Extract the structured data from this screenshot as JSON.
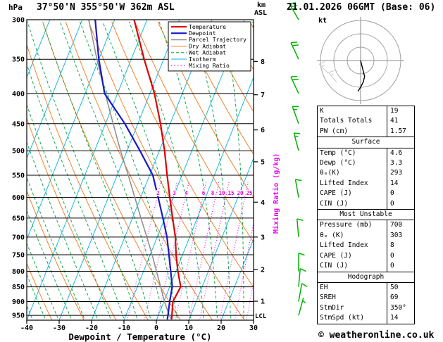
{
  "header": {
    "pressure_unit": "hPa",
    "station_title": "37°50'N 355°50'W 362m ASL",
    "altitude_unit_km": "km",
    "altitude_unit_asl": "ASL",
    "datetime_title": "21.01.2026 06GMT (Base: 06)"
  },
  "footer": {
    "x_axis_label": "Dewpoint / Temperature (°C)",
    "copyright": "© weatheronline.co.uk"
  },
  "side_label": {
    "mixing_ratio_axis": "Mixing Ratio (g/kg)",
    "lcl_label": "LCL"
  },
  "legend": {
    "items": [
      {
        "label": "Temperature",
        "color": "#e00000",
        "dash": ""
      },
      {
        "label": "Dewpoint",
        "color": "#1818cc",
        "dash": ""
      },
      {
        "label": "Parcel Trajectory",
        "color": "#909090",
        "dash": ""
      },
      {
        "label": "Dry Adiabat",
        "color": "#f07818",
        "dash": ""
      },
      {
        "label": "Wet Adiabat",
        "color": "#00a040",
        "dash": "4 3"
      },
      {
        "label": "Isotherm",
        "color": "#00b4dc",
        "dash": ""
      },
      {
        "label": "Mixing Ratio",
        "color": "#e800e8",
        "dash": "1.5 3"
      }
    ]
  },
  "chart_data": {
    "type": "skewt_log_p",
    "pressure_ticks_hpa": [
      300,
      350,
      400,
      450,
      500,
      550,
      600,
      650,
      700,
      750,
      800,
      850,
      900,
      950
    ],
    "temp_ticks_c": [
      -40,
      -30,
      -20,
      -10,
      0,
      10,
      20,
      30
    ],
    "pressure_range_hpa": [
      300,
      968
    ],
    "temp_range_surface_c": [
      -40,
      30
    ],
    "km_ticks": [
      {
        "km": 1,
        "p": 899
      },
      {
        "km": 2,
        "p": 795
      },
      {
        "km": 3,
        "p": 700
      },
      {
        "km": 4,
        "p": 611
      },
      {
        "km": 5,
        "p": 522
      },
      {
        "km": 6,
        "p": 461
      },
      {
        "km": 7,
        "p": 402
      },
      {
        "km": 8,
        "p": 353
      }
    ],
    "lcl_pressure_hpa": 952,
    "isotherms_c": {
      "min": -120,
      "max": 40,
      "step": 10
    },
    "dry_adiabats_c": {
      "min": -40,
      "max": 160,
      "step": 10
    },
    "wet_adiabats_c": {
      "min": -60,
      "max": 36,
      "step": 4
    },
    "mixing_ratio_gkg": [
      2,
      3,
      4,
      6,
      8,
      10,
      15,
      20,
      25
    ],
    "mixing_ratio_label_pressure_hpa": 590,
    "temperature_profile": [
      {
        "p": 965,
        "t": 4.6
      },
      {
        "p": 950,
        "t": 4.2
      },
      {
        "p": 900,
        "t": 2.8
      },
      {
        "p": 850,
        "t": 3.4
      },
      {
        "p": 800,
        "t": 0.6
      },
      {
        "p": 750,
        "t": -2.0
      },
      {
        "p": 700,
        "t": -4.4
      },
      {
        "p": 650,
        "t": -7.6
      },
      {
        "p": 600,
        "t": -11.0
      },
      {
        "p": 550,
        "t": -14.6
      },
      {
        "p": 500,
        "t": -18.4
      },
      {
        "p": 450,
        "t": -23.0
      },
      {
        "p": 400,
        "t": -28.6
      },
      {
        "p": 350,
        "t": -36.0
      },
      {
        "p": 300,
        "t": -44.0
      }
    ],
    "dewpoint_profile": [
      {
        "p": 965,
        "t": 3.3
      },
      {
        "p": 950,
        "t": 3.0
      },
      {
        "p": 900,
        "t": 1.8
      },
      {
        "p": 850,
        "t": 0.8
      },
      {
        "p": 800,
        "t": -1.6
      },
      {
        "p": 750,
        "t": -4.2
      },
      {
        "p": 700,
        "t": -7.0
      },
      {
        "p": 650,
        "t": -10.6
      },
      {
        "p": 600,
        "t": -14.6
      },
      {
        "p": 550,
        "t": -19.0
      },
      {
        "p": 500,
        "t": -26.0
      },
      {
        "p": 450,
        "t": -34.0
      },
      {
        "p": 400,
        "t": -44.0
      },
      {
        "p": 350,
        "t": -50.0
      },
      {
        "p": 300,
        "t": -56.0
      }
    ],
    "parcel_profile": [
      {
        "p": 965,
        "t": 4.6
      },
      {
        "p": 950,
        "t": 3.4
      },
      {
        "p": 900,
        "t": 0.2
      },
      {
        "p": 850,
        "t": -2.8
      },
      {
        "p": 800,
        "t": -6.0
      },
      {
        "p": 750,
        "t": -9.4
      },
      {
        "p": 700,
        "t": -13.2
      },
      {
        "p": 650,
        "t": -17.4
      },
      {
        "p": 600,
        "t": -21.8
      },
      {
        "p": 550,
        "t": -26.6
      },
      {
        "p": 500,
        "t": -32.0
      },
      {
        "p": 450,
        "t": -37.6
      },
      {
        "p": 400,
        "t": -43.8
      },
      {
        "p": 350,
        "t": -50.6
      },
      {
        "p": 300,
        "t": -58.0
      }
    ],
    "wind_barbs": [
      {
        "p": 300,
        "dir_deg": 330,
        "speed_kt": 25
      },
      {
        "p": 350,
        "dir_deg": 335,
        "speed_kt": 20
      },
      {
        "p": 400,
        "dir_deg": 335,
        "speed_kt": 20
      },
      {
        "p": 450,
        "dir_deg": 340,
        "speed_kt": 15
      },
      {
        "p": 500,
        "dir_deg": 345,
        "speed_kt": 15
      },
      {
        "p": 600,
        "dir_deg": 350,
        "speed_kt": 10
      },
      {
        "p": 700,
        "dir_deg": 355,
        "speed_kt": 10
      },
      {
        "p": 800,
        "dir_deg": 360,
        "speed_kt": 10
      },
      {
        "p": 850,
        "dir_deg": 5,
        "speed_kt": 10
      },
      {
        "p": 900,
        "dir_deg": 10,
        "speed_kt": 10
      },
      {
        "p": 950,
        "dir_deg": 15,
        "speed_kt": 5
      }
    ]
  },
  "hodograph": {
    "unit": "kt",
    "rings_kt": [
      10,
      20,
      30
    ],
    "trace_uv_kt": [
      [
        0,
        0
      ],
      [
        1,
        -4
      ],
      [
        2,
        -8
      ],
      [
        3,
        -12
      ],
      [
        2,
        -16
      ],
      [
        0,
        -20
      ],
      [
        -2,
        -23
      ]
    ]
  },
  "table": {
    "sections": [
      {
        "rows": [
          {
            "label": "K",
            "value": "19"
          },
          {
            "label": "Totals Totals",
            "value": "41"
          },
          {
            "label": "PW (cm)",
            "value": "1.57"
          }
        ]
      },
      {
        "header": "Surface",
        "rows": [
          {
            "label": "Temp (°C)",
            "value": "4.6"
          },
          {
            "label": "Dewp (°C)",
            "value": "3.3"
          },
          {
            "label": "θₑ(K)",
            "value": "293"
          },
          {
            "label": "Lifted Index",
            "value": "14"
          },
          {
            "label": "CAPE (J)",
            "value": "0"
          },
          {
            "label": "CIN (J)",
            "value": "0"
          }
        ]
      },
      {
        "header": "Most Unstable",
        "rows": [
          {
            "label": "Pressure (mb)",
            "value": "700"
          },
          {
            "label": "θₑ (K)",
            "value": "303"
          },
          {
            "label": "Lifted Index",
            "value": "8"
          },
          {
            "label": "CAPE (J)",
            "value": "0"
          },
          {
            "label": "CIN (J)",
            "value": "0"
          }
        ]
      },
      {
        "header": "Hodograph",
        "rows": [
          {
            "label": "EH",
            "value": "50"
          },
          {
            "label": "SREH",
            "value": "69"
          },
          {
            "label": "StmDir",
            "value": "350°"
          },
          {
            "label": "StmSpd (kt)",
            "value": "14"
          }
        ]
      }
    ]
  }
}
